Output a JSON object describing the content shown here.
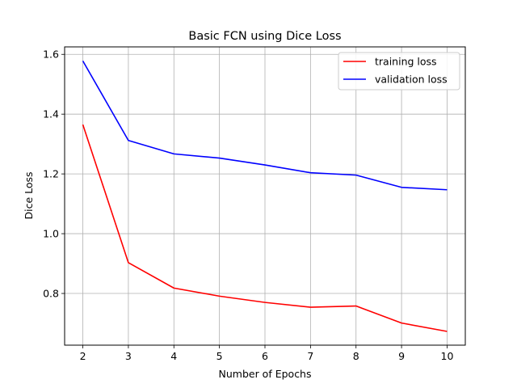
{
  "chart_data": {
    "type": "line",
    "title": "Basic FCN using Dice Loss",
    "xlabel": "Number of Epochs",
    "ylabel": "Dice Loss",
    "x": [
      2,
      3,
      4,
      5,
      6,
      7,
      8,
      9,
      10
    ],
    "xlim": [
      1.6,
      10.4
    ],
    "ylim": [
      0.627,
      1.625
    ],
    "xticks": [
      "2",
      "3",
      "4",
      "5",
      "6",
      "7",
      "8",
      "9",
      "10"
    ],
    "yticks": [
      "0.8",
      "1.0",
      "1.2",
      "1.4",
      "1.6"
    ],
    "grid": true,
    "legend_position": "top-right",
    "series": [
      {
        "name": "training loss",
        "color": "#ff0000",
        "values": [
          1.365,
          0.903,
          0.818,
          0.791,
          0.77,
          0.754,
          0.758,
          0.701,
          0.673
        ]
      },
      {
        "name": "validation loss",
        "color": "#0000ff",
        "values": [
          1.578,
          1.312,
          1.267,
          1.253,
          1.23,
          1.204,
          1.196,
          1.155,
          1.147
        ]
      }
    ]
  }
}
